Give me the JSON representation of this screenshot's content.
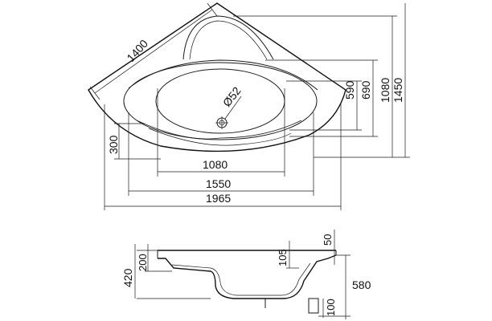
{
  "top_view": {
    "dim_diagonal": "1400",
    "dim_drain_diameter": "Ø52",
    "dim_300": "300",
    "dim_1080_horizontal": "1080",
    "dim_1550": "1550",
    "dim_1965": "1965",
    "dim_590": "590",
    "dim_690": "690",
    "dim_1080_vertical": "1080",
    "dim_1450": "1450"
  },
  "side_view": {
    "dim_420": "420",
    "dim_200": "200",
    "dim_105": "105",
    "dim_50": "50",
    "dim_580": "580",
    "dim_100": "100"
  }
}
